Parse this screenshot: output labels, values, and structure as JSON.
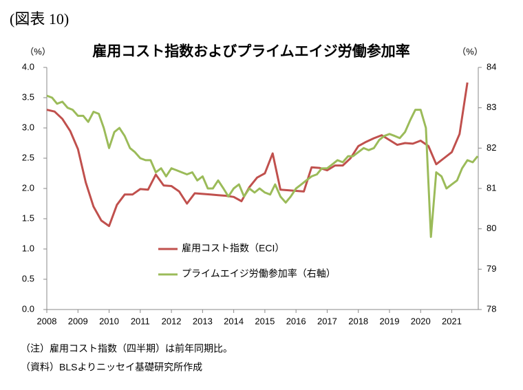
{
  "chart_data": {
    "type": "line",
    "figure_label": "(図表 10)",
    "title": "雇用コスト指数およびプライムエイジ労働参加率",
    "y_unit": "（%）",
    "y2_unit": "（%）",
    "notes": [
      "（注）雇用コスト指数（四半期）は前年同期比。",
      "（資料）BLSよりニッセイ基礎研究所作成"
    ],
    "xlim": [
      2008,
      2021.85
    ],
    "xticks": [
      2008,
      2009,
      2010,
      2011,
      2012,
      2013,
      2014,
      2015,
      2016,
      2017,
      2018,
      2019,
      2020,
      2021
    ],
    "ylim": [
      0,
      4
    ],
    "yticks": [
      {
        "value": 0,
        "label": "0.0"
      },
      0.5,
      {
        "value": 1,
        "label": "1.0"
      },
      1.5,
      {
        "value": 2,
        "label": "2.0"
      },
      2.5,
      {
        "value": 3,
        "label": "3.0"
      },
      3.5,
      {
        "value": 4,
        "label": "4.0"
      }
    ],
    "y2lim": [
      78,
      84
    ],
    "y2ticks": [
      78,
      79,
      80,
      81,
      82,
      83,
      84
    ],
    "grid": false,
    "series": [
      {
        "name": "雇用コスト指数（ECI）",
        "color": "#c0504d",
        "axis": "y",
        "x": [
          2008,
          2008.25,
          2008.5,
          2008.75,
          2009,
          2009.25,
          2009.5,
          2009.75,
          2010,
          2010.25,
          2010.5,
          2010.75,
          2011,
          2011.25,
          2011.5,
          2011.75,
          2012,
          2012.25,
          2012.5,
          2012.75,
          2013,
          2013.25,
          2013.5,
          2013.75,
          2014,
          2014.25,
          2014.5,
          2014.75,
          2015,
          2015.25,
          2015.5,
          2015.75,
          2016,
          2016.25,
          2016.5,
          2016.75,
          2017,
          2017.25,
          2017.5,
          2017.75,
          2018,
          2018.25,
          2018.5,
          2018.75,
          2019,
          2019.25,
          2019.5,
          2019.75,
          2020,
          2020.25,
          2020.5,
          2020.75,
          2021,
          2021.25,
          2021.5
        ],
        "values": [
          3.3,
          3.27,
          3.15,
          2.95,
          2.65,
          2.1,
          1.7,
          1.47,
          1.38,
          1.73,
          1.9,
          1.9,
          1.99,
          1.98,
          2.23,
          2.05,
          2.04,
          1.95,
          1.75,
          1.92,
          1.91,
          1.9,
          1.89,
          1.88,
          1.86,
          1.79,
          2.02,
          2.18,
          2.25,
          2.58,
          1.98,
          1.97,
          1.96,
          1.95,
          2.35,
          2.34,
          2.3,
          2.38,
          2.38,
          2.5,
          2.7,
          2.77,
          2.83,
          2.88,
          2.8,
          2.72,
          2.75,
          2.74,
          2.79,
          2.7,
          2.4,
          2.5,
          2.6,
          2.9,
          3.75
        ]
      },
      {
        "name": "プライムエイジ労働参加率（右軸）",
        "color": "#9bbb59",
        "axis": "y2",
        "x": [
          2008,
          2008.17,
          2008.33,
          2008.5,
          2008.67,
          2008.83,
          2009,
          2009.17,
          2009.33,
          2009.5,
          2009.67,
          2009.83,
          2010,
          2010.17,
          2010.33,
          2010.5,
          2010.67,
          2010.83,
          2011,
          2011.17,
          2011.33,
          2011.5,
          2011.67,
          2011.83,
          2012,
          2012.17,
          2012.33,
          2012.5,
          2012.67,
          2012.83,
          2013,
          2013.17,
          2013.33,
          2013.5,
          2013.67,
          2013.83,
          2014,
          2014.17,
          2014.33,
          2014.5,
          2014.67,
          2014.83,
          2015,
          2015.17,
          2015.33,
          2015.5,
          2015.67,
          2015.83,
          2016,
          2016.17,
          2016.33,
          2016.5,
          2016.67,
          2016.83,
          2017,
          2017.17,
          2017.33,
          2017.5,
          2017.67,
          2017.83,
          2018,
          2018.17,
          2018.33,
          2018.5,
          2018.67,
          2018.83,
          2019,
          2019.17,
          2019.33,
          2019.5,
          2019.67,
          2019.83,
          2020,
          2020.17,
          2020.33,
          2020.5,
          2020.67,
          2020.83,
          2021,
          2021.17,
          2021.33,
          2021.5,
          2021.67,
          2021.83
        ],
        "values": [
          83.3,
          83.25,
          83.1,
          83.15,
          83.0,
          82.95,
          82.8,
          82.8,
          82.65,
          82.9,
          82.85,
          82.5,
          82.0,
          82.4,
          82.5,
          82.3,
          82.0,
          81.9,
          81.75,
          81.7,
          81.7,
          81.4,
          81.5,
          81.3,
          81.5,
          81.45,
          81.4,
          81.35,
          81.4,
          81.2,
          81.3,
          81.0,
          81.0,
          81.2,
          81.0,
          80.8,
          81.0,
          81.1,
          80.8,
          81.0,
          80.9,
          81.0,
          80.9,
          80.85,
          81.1,
          80.8,
          80.65,
          80.8,
          81.0,
          81.1,
          81.2,
          81.3,
          81.35,
          81.5,
          81.5,
          81.6,
          81.7,
          81.65,
          81.8,
          81.8,
          81.9,
          82.0,
          81.95,
          82.0,
          82.2,
          82.3,
          82.35,
          82.3,
          82.25,
          82.4,
          82.7,
          82.95,
          82.95,
          82.5,
          79.8,
          81.4,
          81.3,
          81.0,
          81.1,
          81.2,
          81.5,
          81.7,
          81.65,
          81.8
        ]
      }
    ]
  }
}
